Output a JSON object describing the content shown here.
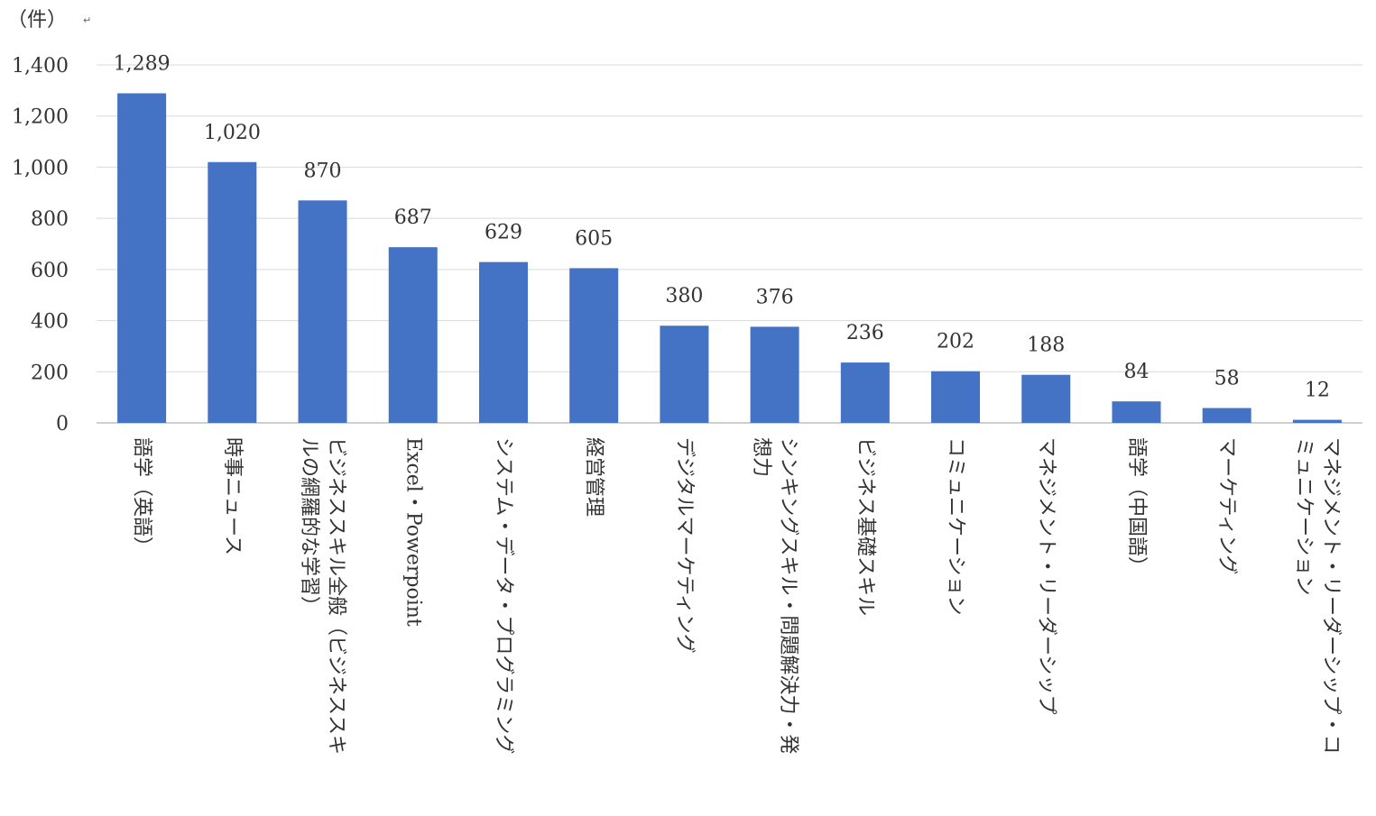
{
  "unit_label": "（件）",
  "return_mark": "↵",
  "chart_data": {
    "type": "bar",
    "title": "",
    "xlabel": "",
    "ylabel": "（件）",
    "ylim": [
      0,
      1400
    ],
    "yticks": [
      0,
      200,
      400,
      600,
      800,
      1000,
      1200,
      1400
    ],
    "ytick_labels": [
      "0",
      "200",
      "400",
      "600",
      "800",
      "1,000",
      "1,200",
      "1,400"
    ],
    "grid": true,
    "bar_color": "#4472C4",
    "categories": [
      {
        "lines": [
          "語学（英語）"
        ]
      },
      {
        "lines": [
          "時事ニュース"
        ]
      },
      {
        "lines": [
          "ビジネススキル全般（ビジネススキ",
          "ルの網羅的な学習）"
        ]
      },
      {
        "lines": [
          "Excel・Powerpoint"
        ]
      },
      {
        "lines": [
          "システム・データ・プログラミング"
        ]
      },
      {
        "lines": [
          "経営管理"
        ]
      },
      {
        "lines": [
          "デジタルマーケティング"
        ]
      },
      {
        "lines": [
          "シンキングスキル・問題解決力・発",
          "想力"
        ]
      },
      {
        "lines": [
          "ビジネス基礎スキル"
        ]
      },
      {
        "lines": [
          "コミュニケーション"
        ]
      },
      {
        "lines": [
          "マネジメント・リーダーシップ"
        ]
      },
      {
        "lines": [
          "語学（中国語）"
        ]
      },
      {
        "lines": [
          "マーケティング"
        ]
      },
      {
        "lines": [
          "マネジメント・リーダーシップ・コ",
          "ミュニケーション"
        ]
      }
    ],
    "values": [
      1289,
      1020,
      870,
      687,
      629,
      605,
      380,
      376,
      236,
      202,
      188,
      84,
      58,
      12
    ],
    "value_labels": [
      "1,289",
      "1,020",
      "870",
      "687",
      "629",
      "605",
      "380",
      "376",
      "236",
      "202",
      "188",
      "84",
      "58",
      "12"
    ]
  }
}
